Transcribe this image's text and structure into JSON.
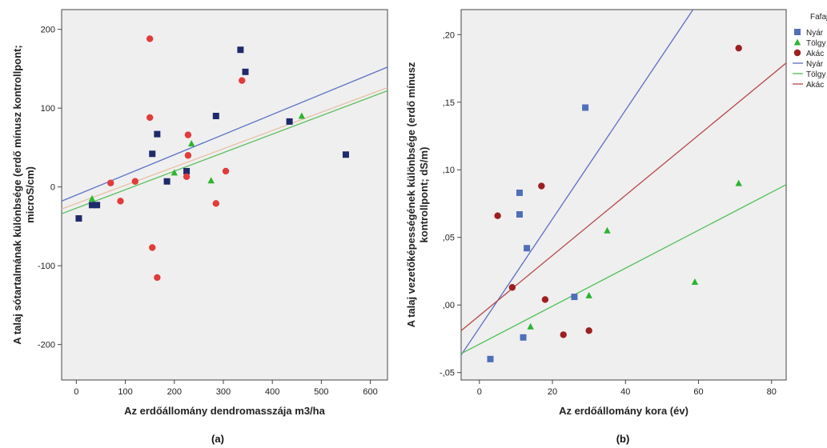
{
  "captions": {
    "a": "(a)",
    "b": "(b)"
  },
  "chart_data": [
    {
      "type": "scatter",
      "xlabel": "Az erdőállomány dendromasszája m3/ha",
      "ylabel_lines": [
        "A talaj sótartalmának különbsége (erdő mínusz kontrollpont;",
        "microS/cm)"
      ],
      "xlim": [
        -30,
        635
      ],
      "ylim": [
        -245,
        225
      ],
      "xticks": [
        0,
        100,
        200,
        300,
        400,
        500,
        600
      ],
      "yticks": [
        -200,
        -100,
        0,
        100,
        200
      ],
      "grid": false,
      "series": [
        {
          "group": "Nyár",
          "marker": "square",
          "color": "#1f2a6b",
          "points": [
            [
              5,
              -40
            ],
            [
              32,
              -23
            ],
            [
              42,
              -23
            ],
            [
              155,
              42
            ],
            [
              165,
              67
            ],
            [
              185,
              7
            ],
            [
              225,
              20
            ],
            [
              285,
              90
            ],
            [
              335,
              174
            ],
            [
              345,
              146
            ],
            [
              435,
              83
            ],
            [
              550,
              41
            ]
          ]
        },
        {
          "group": "Tölgy",
          "marker": "triangle",
          "color": "#2db52d",
          "points": [
            [
              32,
              -15
            ],
            [
              200,
              18
            ],
            [
              235,
              55
            ],
            [
              275,
              8
            ],
            [
              460,
              90
            ]
          ]
        },
        {
          "group": "Akác",
          "marker": "circle",
          "color": "#e23b3b",
          "points": [
            [
              70,
              5
            ],
            [
              90,
              -18
            ],
            [
              120,
              7
            ],
            [
              150,
              188
            ],
            [
              150,
              88
            ],
            [
              155,
              -77
            ],
            [
              165,
              -115
            ],
            [
              225,
              13
            ],
            [
              228,
              66
            ],
            [
              228,
              40
            ],
            [
              285,
              -21
            ],
            [
              305,
              20
            ],
            [
              338,
              135
            ]
          ]
        }
      ],
      "fits": [
        {
          "group": "Nyár",
          "color": "#5b72c8",
          "from": [
            -30,
            -18
          ],
          "to": [
            635,
            152
          ]
        },
        {
          "group": "Akác",
          "color": "#e8c0a4",
          "from": [
            -30,
            -28
          ],
          "to": [
            635,
            126
          ]
        },
        {
          "group": "Tölgy",
          "color": "#58c05a",
          "from": [
            -30,
            -34
          ],
          "to": [
            635,
            122
          ]
        }
      ]
    },
    {
      "type": "scatter",
      "xlabel": "Az erdőállomány kora (év)",
      "ylabel_lines": [
        "A talaj vezetőképességének különbsége (erdő mínusz",
        "kontrollpont; dS/m)"
      ],
      "xlim": [
        -5,
        84
      ],
      "ylim": [
        -0.0555,
        0.2185
      ],
      "xticks": [
        0,
        20,
        40,
        60,
        80
      ],
      "yticks": [
        -0.05,
        0,
        0.05,
        0.1,
        0.15,
        0.2
      ],
      "ytick_labels": [
        ",05",
        ",00",
        ",05",
        ",10",
        ",15",
        ",20"
      ],
      "ytick_label_prefix_negative": "-",
      "grid": false,
      "series": [
        {
          "group": "Nyár",
          "marker": "square",
          "color": "#4f6fba",
          "points": [
            [
              3,
              -0.04
            ],
            [
              11,
              0.083
            ],
            [
              11,
              0.067
            ],
            [
              12,
              -0.024
            ],
            [
              13,
              0.042
            ],
            [
              26,
              0.006
            ],
            [
              29,
              0.146
            ]
          ]
        },
        {
          "group": "Tölgy",
          "marker": "triangle",
          "color": "#29b52f",
          "points": [
            [
              14,
              -0.016
            ],
            [
              30,
              0.007
            ],
            [
              35,
              0.055
            ],
            [
              59,
              0.017
            ],
            [
              71,
              0.09
            ]
          ]
        },
        {
          "group": "Akác",
          "marker": "circle",
          "color": "#9e1f1f",
          "points": [
            [
              5,
              0.066
            ],
            [
              9,
              0.013
            ],
            [
              17,
              0.088
            ],
            [
              18,
              0.004
            ],
            [
              23,
              -0.022
            ],
            [
              30,
              -0.019
            ],
            [
              71,
              0.19
            ]
          ]
        }
      ],
      "fits": [
        {
          "group": "Nyár",
          "color": "#5b6ec4",
          "from": [
            -5,
            -0.037
          ],
          "to": [
            58.5,
            0.2185
          ]
        },
        {
          "group": "Akác",
          "color": "#b84545",
          "from": [
            -5,
            -0.019
          ],
          "to": [
            84,
            0.179
          ]
        },
        {
          "group": "Tölgy",
          "color": "#4cc253",
          "from": [
            -5,
            -0.036
          ],
          "to": [
            84,
            0.089
          ]
        }
      ],
      "legend": {
        "title": "Fafaj",
        "placement": "right",
        "entries": [
          {
            "label": "Nyár",
            "kind": "square",
            "color": "#4f6fba"
          },
          {
            "label": "Tölgy",
            "kind": "triangle",
            "color": "#29b52f"
          },
          {
            "label": "Akác",
            "kind": "circle",
            "color": "#9e1f1f"
          },
          {
            "label": "Nyár",
            "kind": "line",
            "color": "#5b6ec4"
          },
          {
            "label": "Tölgy",
            "kind": "line",
            "color": "#4cc253"
          },
          {
            "label": "Akác",
            "kind": "line",
            "color": "#b84545"
          }
        ]
      }
    }
  ]
}
